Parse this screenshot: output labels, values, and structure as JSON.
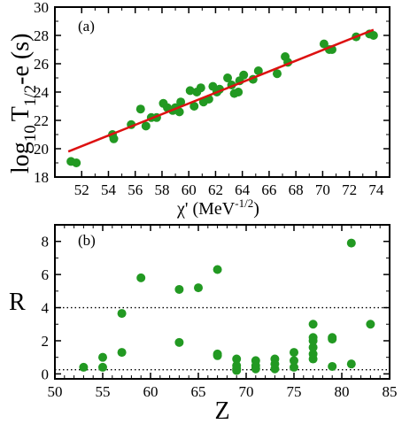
{
  "chart_data": [
    {
      "type": "scatter",
      "panel_label": "(a)",
      "xlabel_base": "χ' (MeV",
      "xlabel_sup": "-1/2",
      "xlabel_end": ")",
      "ylabel_main": "log",
      "ylabel_sub": "10",
      "ylabel_T": "T",
      "ylabel_tsub": "1/2",
      "ylabel_end": "-e (s)",
      "xlim": [
        50,
        75
      ],
      "ylim": [
        18,
        30
      ],
      "xticks": [
        52,
        54,
        56,
        58,
        60,
        62,
        64,
        66,
        68,
        70,
        72,
        74
      ],
      "yticks": [
        18,
        20,
        22,
        24,
        26,
        28,
        30
      ],
      "point_color": "#229922",
      "line_color": "#dd1111",
      "fit_line": [
        [
          51.0,
          19.8
        ],
        [
          73.8,
          28.4
        ]
      ],
      "points": [
        [
          51.2,
          19.1
        ],
        [
          51.6,
          19.0
        ],
        [
          54.3,
          21.0
        ],
        [
          54.4,
          20.7
        ],
        [
          55.7,
          21.7
        ],
        [
          56.4,
          22.8
        ],
        [
          56.8,
          21.6
        ],
        [
          57.2,
          22.2
        ],
        [
          57.6,
          22.2
        ],
        [
          58.1,
          23.2
        ],
        [
          58.4,
          22.9
        ],
        [
          58.8,
          22.7
        ],
        [
          59.0,
          22.9
        ],
        [
          59.3,
          22.6
        ],
        [
          59.4,
          23.3
        ],
        [
          60.1,
          24.1
        ],
        [
          60.4,
          23.0
        ],
        [
          60.6,
          24.0
        ],
        [
          60.9,
          24.3
        ],
        [
          61.1,
          23.3
        ],
        [
          61.5,
          23.5
        ],
        [
          61.8,
          24.4
        ],
        [
          62.1,
          24.0
        ],
        [
          62.3,
          24.2
        ],
        [
          62.9,
          25.0
        ],
        [
          63.2,
          24.5
        ],
        [
          63.4,
          23.9
        ],
        [
          63.7,
          24.0
        ],
        [
          63.8,
          24.8
        ],
        [
          64.1,
          25.2
        ],
        [
          64.8,
          24.9
        ],
        [
          65.2,
          25.5
        ],
        [
          66.6,
          25.3
        ],
        [
          67.2,
          26.5
        ],
        [
          67.4,
          26.1
        ],
        [
          70.1,
          27.4
        ],
        [
          70.5,
          27.0
        ],
        [
          70.7,
          27.0
        ],
        [
          72.5,
          27.9
        ],
        [
          73.5,
          28.1
        ],
        [
          73.8,
          28.0
        ]
      ]
    },
    {
      "type": "scatter",
      "panel_label": "(b)",
      "xlabel": "Z",
      "ylabel": "R",
      "xlim": [
        50,
        85
      ],
      "ylim": [
        -0.3,
        9
      ],
      "xticks": [
        50,
        55,
        60,
        65,
        70,
        75,
        80,
        85
      ],
      "yticks": [
        0,
        2,
        4,
        6,
        8
      ],
      "point_color": "#229922",
      "ref_lines": [
        4,
        0.25
      ],
      "points": [
        [
          53,
          0.4
        ],
        [
          55,
          0.4
        ],
        [
          55,
          1.0
        ],
        [
          57,
          1.3
        ],
        [
          57,
          3.65
        ],
        [
          59,
          5.8
        ],
        [
          63,
          5.1
        ],
        [
          63,
          1.9
        ],
        [
          65,
          5.2
        ],
        [
          67,
          6.3
        ],
        [
          67,
          1.1
        ],
        [
          67,
          1.2
        ],
        [
          69,
          0.2
        ],
        [
          69,
          0.3
        ],
        [
          69,
          0.5
        ],
        [
          69,
          0.9
        ],
        [
          71,
          0.3
        ],
        [
          71,
          0.5
        ],
        [
          71,
          0.8
        ],
        [
          73,
          0.3
        ],
        [
          73,
          0.6
        ],
        [
          73,
          0.9
        ],
        [
          75,
          0.4
        ],
        [
          75,
          0.8
        ],
        [
          75,
          1.3
        ],
        [
          77,
          0.9
        ],
        [
          77,
          1.2
        ],
        [
          77,
          1.6
        ],
        [
          77,
          2.0
        ],
        [
          77,
          2.2
        ],
        [
          77,
          3.0
        ],
        [
          79,
          0.45
        ],
        [
          79,
          2.1
        ],
        [
          79,
          2.2
        ],
        [
          81,
          0.6
        ],
        [
          81,
          7.9
        ],
        [
          83,
          3.0
        ]
      ]
    }
  ]
}
